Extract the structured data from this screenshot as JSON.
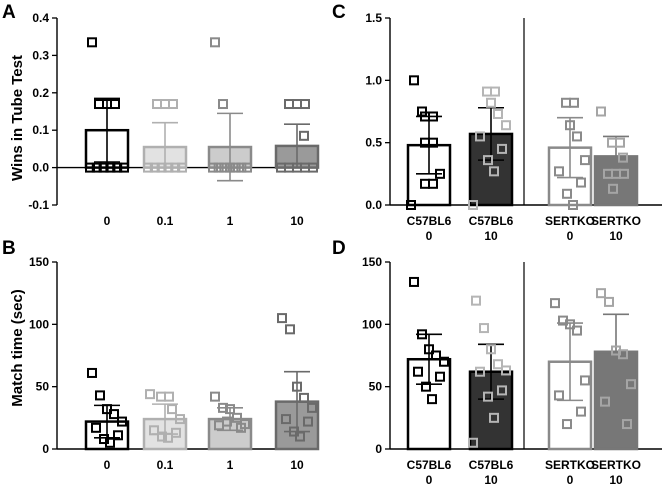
{
  "chart_data": [
    {
      "panel": "A",
      "type": "bar",
      "ylabel": "Wins in Tube Test",
      "ylim": [
        -0.1,
        0.4
      ],
      "yticks": [
        "-0.1",
        "0.0",
        "0.1",
        "0.2",
        "0.3",
        "0.4"
      ],
      "categories": [
        "0",
        "0.1",
        "1",
        "10"
      ],
      "values": [
        0.1,
        0.055,
        0.055,
        0.058
      ],
      "errors": [
        0.085,
        0.065,
        0.09,
        0.058
      ],
      "points": [
        [
          0.335,
          0.17,
          0.17,
          0.17,
          0.0,
          0.0,
          0.0,
          0.0,
          0.0,
          0.0
        ],
        [
          0.17,
          0.17,
          0.17,
          0.0,
          0.0,
          0.0,
          0.0,
          0.0,
          0.0
        ],
        [
          0.335,
          0.17,
          0.0,
          0.0,
          0.0,
          0.0,
          0.0,
          0.0,
          0.0
        ],
        [
          0.17,
          0.17,
          0.17,
          0.085,
          0.0,
          0.0,
          0.0,
          0.0,
          0.0
        ]
      ],
      "colors": {
        "fill": [
          "#ffffff",
          "#e2e2e2",
          "#cccccc",
          "#9a9a9a"
        ],
        "edge": [
          "#000000",
          "#b0b0b0",
          "#8a8a8a",
          "#6a6a6a"
        ]
      }
    },
    {
      "panel": "B",
      "type": "bar",
      "ylabel": "Match time (sec)",
      "ylim": [
        0,
        150
      ],
      "yticks": [
        "0",
        "50",
        "100",
        "150"
      ],
      "categories": [
        "0",
        "0.1",
        "1",
        "10"
      ],
      "values": [
        22,
        24,
        24,
        38
      ],
      "errors": [
        13,
        12,
        9,
        24
      ],
      "points": [
        [
          61,
          43,
          32,
          28,
          22,
          17,
          11,
          8,
          5
        ],
        [
          44,
          42,
          42,
          32,
          24,
          15,
          13,
          10,
          9
        ],
        [
          42,
          33,
          32,
          25,
          20,
          19,
          17,
          22
        ],
        [
          105,
          96,
          50,
          41,
          33,
          24,
          22,
          14,
          10
        ]
      ],
      "colors": {
        "fill": [
          "#ffffff",
          "#e2e2e2",
          "#cccccc",
          "#9a9a9a"
        ],
        "edge": [
          "#000000",
          "#b0b0b0",
          "#8a8a8a",
          "#6a6a6a"
        ]
      }
    },
    {
      "panel": "C",
      "type": "bar",
      "ylabel": "",
      "ylim": [
        0,
        1.5
      ],
      "yticks": [
        "0.0",
        "0.5",
        "1.0",
        "1.5"
      ],
      "categories": [
        "C57BL6\n0",
        "C57BL6\n10",
        "SERTKO\n0",
        "SERTKO\n10"
      ],
      "values": [
        0.48,
        0.57,
        0.46,
        0.39
      ],
      "errors": [
        0.23,
        0.21,
        0.24,
        0.16
      ],
      "points": [
        [
          1.0,
          0.75,
          0.71,
          0.71,
          0.5,
          0.5,
          0.25,
          0.17,
          0.17,
          0.0
        ],
        [
          0.91,
          0.91,
          0.82,
          0.73,
          0.64,
          0.55,
          0.45,
          0.36,
          0.27,
          0.0
        ],
        [
          0.82,
          0.82,
          0.64,
          0.55,
          0.36,
          0.27,
          0.18,
          0.09,
          0.0
        ],
        [
          0.75,
          0.5,
          0.5,
          0.38,
          0.25,
          0.25,
          0.25,
          0.13
        ]
      ],
      "colors": {
        "fill": [
          "#ffffff",
          "#333333",
          "#ffffff",
          "#777777"
        ],
        "edge": [
          "#000000",
          "#000000",
          "#8a8a8a",
          "#777777"
        ]
      }
    },
    {
      "panel": "D",
      "type": "bar",
      "ylabel": "",
      "ylim": [
        0,
        150
      ],
      "yticks": [
        "0",
        "50",
        "100",
        "150"
      ],
      "categories": [
        "C57BL6\n0",
        "C57BL6\n10",
        "SERTKO\n0",
        "SERTKO\n10"
      ],
      "values": [
        72,
        62,
        70,
        78
      ],
      "errors": [
        20,
        22,
        31,
        30
      ],
      "points": [
        [
          134,
          92,
          80,
          75,
          70,
          62,
          58,
          50,
          40
        ],
        [
          119,
          97,
          80,
          68,
          63,
          62,
          47,
          42,
          25,
          5
        ],
        [
          117,
          103,
          100,
          95,
          55,
          43,
          30,
          20
        ],
        [
          125,
          118,
          79,
          76,
          52,
          38,
          20
        ]
      ],
      "colors": {
        "fill": [
          "#ffffff",
          "#333333",
          "#ffffff",
          "#777777"
        ],
        "edge": [
          "#000000",
          "#000000",
          "#8a8a8a",
          "#777777"
        ]
      }
    }
  ]
}
